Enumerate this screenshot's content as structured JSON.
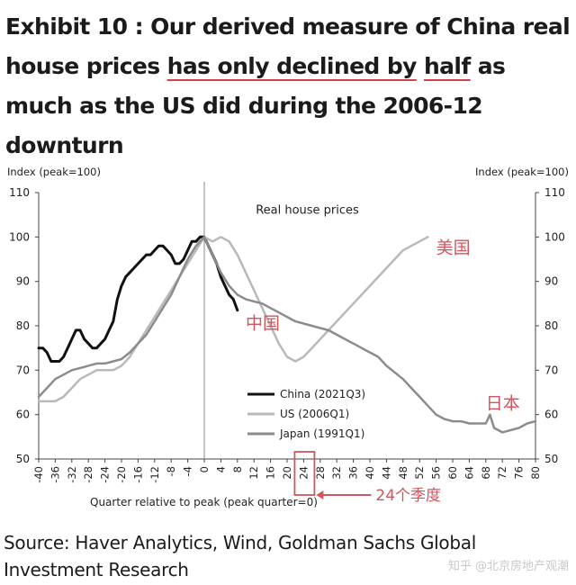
{
  "title": {
    "part1": "Exhibit 10 : Our derived measure of China real house prices ",
    "hl1": "has only declined by",
    "mid": " ",
    "hl2": "half",
    "part2": " as much as the US did during the 2006-12 downturn"
  },
  "source": "Source: Haver Analytics, Wind, Goldman Sachs Global Investment Research",
  "watermark": "知乎 @北京房地产观潮",
  "colors": {
    "china": "#111111",
    "us": "#b9b9b9",
    "japan": "#8c8c8c",
    "annotation": "#d0555c",
    "axis": "#444444"
  },
  "chart_data": {
    "type": "line",
    "title": "Real house prices",
    "ylabel_left": "Index (peak=100)",
    "ylabel_right": "Index (peak=100)",
    "xlabel": "Quarter relative to peak (peak quarter=0)",
    "ylim": [
      50,
      110
    ],
    "yticks": [
      50,
      60,
      70,
      80,
      90,
      100,
      110
    ],
    "xlim": [
      -40,
      80
    ],
    "xticks": [
      -40,
      -36,
      -32,
      -28,
      -24,
      -20,
      -16,
      -12,
      -8,
      -4,
      0,
      4,
      8,
      12,
      16,
      20,
      24,
      28,
      32,
      36,
      40,
      44,
      48,
      52,
      56,
      60,
      64,
      68,
      72,
      76,
      80
    ],
    "grid": false,
    "legend_position": "bottom-center",
    "series": [
      {
        "name": "China (2021Q3)",
        "color": "#111111",
        "x": [
          -40,
          -39,
          -38,
          -37,
          -36,
          -35,
          -34,
          -33,
          -32,
          -31,
          -30,
          -29,
          -28,
          -27,
          -26,
          -25,
          -24,
          -23,
          -22,
          -21,
          -20,
          -19,
          -18,
          -17,
          -16,
          -15,
          -14,
          -13,
          -12,
          -11,
          -10,
          -9,
          -8,
          -7,
          -6,
          -5,
          -4,
          -3,
          -2,
          -1,
          0,
          1,
          2,
          3,
          4,
          5,
          6,
          7,
          8
        ],
        "y": [
          75,
          75,
          74,
          72,
          72,
          72,
          73,
          75,
          77,
          79,
          79,
          77,
          76,
          75,
          75,
          76,
          77,
          79,
          81,
          86,
          89,
          91,
          92,
          93,
          94,
          95,
          96,
          96,
          97,
          98,
          98,
          97,
          96,
          94,
          94,
          95,
          97,
          99,
          99,
          100,
          100,
          98,
          96,
          94,
          91,
          89,
          87,
          86,
          83.5
        ]
      },
      {
        "name": "US (2006Q1)",
        "color": "#b9b9b9",
        "x": [
          -40,
          -38,
          -36,
          -34,
          -32,
          -30,
          -28,
          -26,
          -24,
          -22,
          -20,
          -18,
          -16,
          -14,
          -12,
          -10,
          -8,
          -6,
          -4,
          -2,
          0,
          2,
          4,
          6,
          8,
          10,
          12,
          14,
          16,
          18,
          20,
          22,
          24,
          26,
          28,
          30,
          32,
          34,
          36,
          38,
          40,
          42,
          44,
          46,
          48,
          50,
          52,
          54
        ],
        "y": [
          63,
          63,
          63,
          64,
          66,
          68,
          69,
          70,
          70,
          70,
          71,
          73,
          76,
          79,
          82,
          85,
          88,
          91,
          94,
          97,
          100,
          99,
          100,
          99,
          96,
          92,
          88,
          84,
          80,
          76,
          73,
          72,
          73,
          75,
          77,
          79,
          81,
          83,
          85,
          87,
          89,
          91,
          93,
          95,
          97,
          98,
          99,
          100
        ]
      },
      {
        "name": "Japan (1991Q1)",
        "color": "#8c8c8c",
        "x": [
          -40,
          -38,
          -36,
          -34,
          -32,
          -30,
          -28,
          -26,
          -24,
          -22,
          -20,
          -18,
          -16,
          -14,
          -12,
          -10,
          -8,
          -6,
          -4,
          -2,
          0,
          2,
          4,
          6,
          8,
          10,
          12,
          14,
          16,
          18,
          20,
          22,
          24,
          26,
          28,
          30,
          32,
          34,
          36,
          38,
          40,
          42,
          44,
          46,
          48,
          50,
          52,
          54,
          56,
          58,
          60,
          62,
          64,
          66,
          68,
          69,
          70,
          72,
          74,
          76,
          78,
          80
        ],
        "y": [
          64,
          66,
          68,
          69,
          70,
          70.5,
          71,
          71.5,
          71.5,
          72,
          72.5,
          74,
          76,
          78,
          81,
          84,
          87,
          91,
          95,
          98,
          100,
          96,
          92,
          89,
          87,
          86,
          85.5,
          85,
          84,
          83,
          82,
          81,
          80.5,
          80,
          79.5,
          79,
          78,
          77,
          76,
          75,
          74,
          73,
          71,
          69.5,
          68,
          66,
          64,
          62,
          60,
          59,
          58.5,
          58.5,
          58,
          58,
          58,
          60,
          57,
          56,
          56.5,
          57,
          58,
          58.5
        ]
      }
    ],
    "annotations": [
      {
        "text": "Real house prices",
        "x": 12,
        "y": 106
      },
      {
        "text": "中国",
        "x": 10,
        "y": 80.5,
        "color": "#d0555c"
      },
      {
        "text": "美国",
        "x": 56,
        "y": 97.5,
        "color": "#d0555c"
      },
      {
        "text": "日本",
        "x": 68,
        "y": 62.5,
        "color": "#d0555c"
      },
      {
        "text": "24个季度",
        "x": 38,
        "y": 41.5,
        "color": "#d0555c"
      }
    ],
    "highlight_tick": 24
  }
}
